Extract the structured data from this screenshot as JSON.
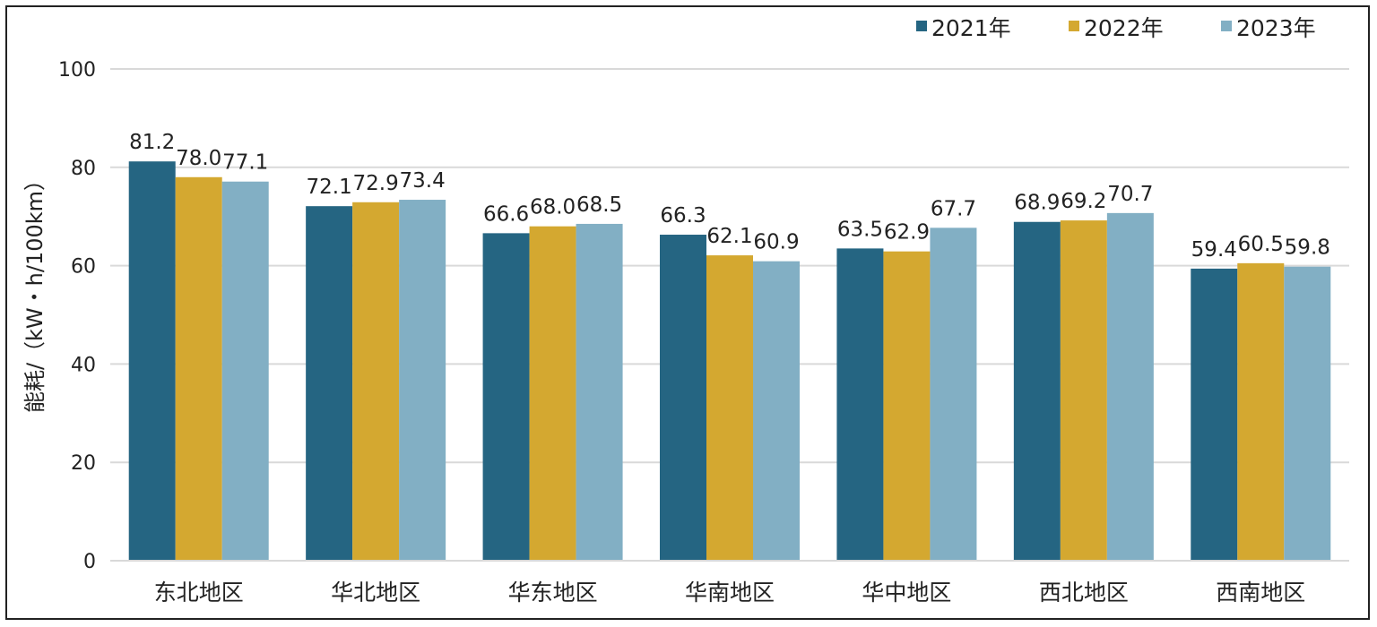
{
  "chart_data": {
    "type": "bar",
    "title": "",
    "xlabel": "",
    "ylabel": "能耗/（kW・h/100km）",
    "ylim": [
      0,
      100
    ],
    "yticks": [
      0,
      20,
      40,
      60,
      80,
      100
    ],
    "grid": true,
    "legend_position": "top-right",
    "categories": [
      "东北地区",
      "华北地区",
      "华东地区",
      "华南地区",
      "华中地区",
      "西北地区",
      "西南地区"
    ],
    "series": [
      {
        "name": "2021年",
        "color": "#256582",
        "values": [
          81.2,
          72.1,
          66.6,
          66.3,
          63.5,
          68.9,
          59.4
        ]
      },
      {
        "name": "2022年",
        "color": "#d4a830",
        "values": [
          78.0,
          72.9,
          68.0,
          62.1,
          62.9,
          69.2,
          60.5
        ]
      },
      {
        "name": "2023年",
        "color": "#82afc4",
        "values": [
          77.1,
          73.4,
          68.5,
          60.9,
          67.7,
          70.7,
          59.8
        ]
      }
    ]
  }
}
